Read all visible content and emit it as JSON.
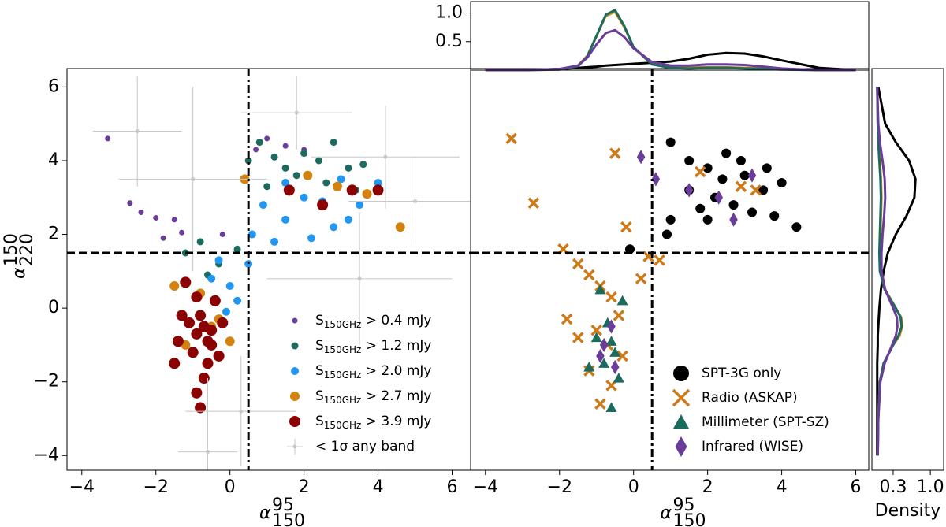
{
  "chart_data": [
    {
      "type": "scatter",
      "x_label": {
        "symbol": "α",
        "sup": "95",
        "sub": "150"
      },
      "y_label": {
        "symbol": "α",
        "sup": "150",
        "sub": "220"
      },
      "xlim": [
        -4.4,
        6.5
      ],
      "ylim": [
        -4.4,
        6.5
      ],
      "xticks": [
        {
          "value": -4,
          "label": "−4"
        },
        {
          "value": -2,
          "label": "−2"
        },
        0,
        2,
        4,
        6
      ],
      "yticks": [
        {
          "value": -4,
          "label": "−4"
        },
        {
          "value": -2,
          "label": "−2"
        },
        0,
        2,
        4,
        6
      ],
      "vlines": [
        0.5
      ],
      "hlines": [
        1.5
      ],
      "legend": "lower right",
      "series": [
        {
          "label_symbol": "S",
          "label_subscript": "150GHz",
          "name": " > 0.4 mJy",
          "color": "#6a3d9a",
          "marker": "circle",
          "size": 3.5,
          "x": [
            -3.3,
            -2.7,
            -2.4,
            -2.0,
            -1.5,
            -1.3,
            -1.8,
            -0.2,
            0.7,
            1.0,
            1.5,
            2.0
          ],
          "y": [
            4.6,
            2.85,
            2.6,
            2.45,
            2.4,
            2.05,
            1.9,
            2.0,
            4.3,
            4.6,
            4.4,
            4.3
          ]
        },
        {
          "label_symbol": "S",
          "label_subscript": "150GHz",
          "name": " > 1.2 mJy",
          "color": "#1b6b5f",
          "marker": "circle",
          "size": 4.5,
          "x": [
            0.5,
            0.8,
            1.2,
            1.5,
            2.0,
            2.4,
            2.8,
            3.2,
            3.6,
            1.0,
            -1.2,
            -0.8,
            -0.3,
            0.2,
            -0.6,
            2.6,
            3.4,
            1.8
          ],
          "y": [
            4.0,
            4.5,
            4.1,
            3.8,
            4.2,
            4.0,
            4.5,
            3.8,
            3.9,
            3.3,
            1.5,
            1.8,
            1.2,
            1.6,
            0.9,
            3.4,
            3.2,
            3.6
          ]
        },
        {
          "label_symbol": "S",
          "label_subscript": "150GHz",
          "name": " > 2.0 mJy",
          "color": "#2196f3",
          "marker": "circle",
          "size": 5,
          "x": [
            0.9,
            1.5,
            2.0,
            2.5,
            3.0,
            3.5,
            4.0,
            1.2,
            2.2,
            3.2,
            0.5,
            0.0,
            -0.3,
            0.2,
            -0.5,
            1.5,
            2.8,
            0.6,
            -0.1
          ],
          "y": [
            2.8,
            2.4,
            3.0,
            2.9,
            3.5,
            2.8,
            3.4,
            1.8,
            1.9,
            2.4,
            1.2,
            0.6,
            1.3,
            0.2,
            0.8,
            3.4,
            2.2,
            2.0,
            -0.1
          ]
        },
        {
          "label_symbol": "S",
          "label_subscript": "150GHz",
          "name": " > 2.7 mJy",
          "color": "#d4820f",
          "marker": "circle",
          "size": 6,
          "x": [
            -1.5,
            -0.8,
            -1.2,
            -0.5,
            0.4,
            2.1,
            2.9,
            4.6,
            3.7,
            -0.3,
            0.0
          ],
          "y": [
            0.6,
            0.4,
            -1.0,
            -0.5,
            3.5,
            3.6,
            3.3,
            2.2,
            3.1,
            -0.3,
            -0.9
          ]
        },
        {
          "label_symbol": "S",
          "label_subscript": "150GHz",
          "name": " > 3.9 mJy",
          "color": "#8b0000",
          "marker": "circle",
          "size": 7,
          "x": [
            -1.1,
            -0.9,
            -0.7,
            -0.6,
            -0.5,
            -1.0,
            -0.8,
            -0.6,
            -0.9,
            -1.2,
            -0.4,
            -1.4,
            -1.5,
            -0.7,
            -0.9,
            -0.8,
            -0.3,
            -0.5,
            -1.3,
            -0.2,
            1.6,
            2.5,
            3.3,
            4.0
          ],
          "y": [
            -0.4,
            -0.7,
            -0.5,
            -0.9,
            -0.6,
            -1.2,
            -0.2,
            -1.5,
            0.3,
            0.7,
            0.2,
            -0.9,
            -1.5,
            -1.9,
            -2.3,
            -2.7,
            -1.3,
            -1.0,
            -0.2,
            -0.4,
            3.2,
            2.8,
            3.2,
            3.2
          ]
        },
        {
          "name": "< 1σ any band",
          "color": "#c8c8c8",
          "marker": "errorbar",
          "size": 2.5,
          "x": [
            -1.0,
            0.3,
            3.5,
            -2.5,
            5.0,
            -0.6,
            1.8,
            4.2
          ],
          "y": [
            3.5,
            -2.8,
            0.8,
            4.8,
            2.9,
            -3.9,
            5.3,
            4.1
          ],
          "xerr": [
            2.0,
            1.5,
            2.5,
            1.2,
            1.8,
            0.8,
            1.5,
            2.0
          ],
          "yerr": [
            2.5,
            1.5,
            1.8,
            1.5,
            1.2,
            2.0,
            1.0,
            1.4
          ]
        }
      ]
    },
    {
      "type": "scatter",
      "x_label": {
        "symbol": "α",
        "sup": "95",
        "sub": "150"
      },
      "xlim": [
        -4.4,
        6.35
      ],
      "ylim": [
        -4.4,
        6.5
      ],
      "xticks": [
        {
          "value": -4,
          "label": "−4"
        },
        {
          "value": -2,
          "label": "−2"
        },
        0,
        2,
        4,
        6
      ],
      "vlines": [
        0.5
      ],
      "hlines": [
        1.5
      ],
      "legend": "lower right",
      "series": [
        {
          "name": "SPT-3G only",
          "color": "#000000",
          "marker": "circle",
          "size": 6,
          "x": [
            1.0,
            1.5,
            2.0,
            2.5,
            3.0,
            3.5,
            4.0,
            2.2,
            2.7,
            3.2,
            1.8,
            1.0,
            1.5,
            2.4,
            3.6,
            4.4,
            3.8,
            0.9,
            2.9,
            2.0,
            -0.1
          ],
          "y": [
            4.5,
            4.0,
            3.8,
            4.2,
            3.6,
            3.2,
            3.4,
            3.0,
            2.8,
            2.6,
            2.7,
            2.4,
            3.2,
            3.5,
            3.8,
            2.2,
            2.5,
            2.0,
            4.0,
            2.4,
            1.6
          ]
        },
        {
          "name": "Radio (ASKAP)",
          "color": "#cc7a1a",
          "marker": "x",
          "size": 6,
          "x": [
            -3.3,
            -2.7,
            -1.9,
            -1.5,
            -1.2,
            -0.9,
            -0.6,
            -0.4,
            -1.0,
            -0.7,
            -1.5,
            -0.3,
            -1.2,
            -0.6,
            -0.9,
            0.2,
            0.4,
            0.7,
            -0.2,
            -1.8,
            1.8,
            2.9,
            3.3,
            -0.5
          ],
          "y": [
            4.6,
            2.85,
            1.6,
            1.2,
            0.9,
            0.6,
            0.3,
            -0.2,
            -0.6,
            -1.0,
            -0.8,
            -1.3,
            -1.7,
            -2.1,
            -2.6,
            0.8,
            1.4,
            1.3,
            2.2,
            -0.3,
            3.7,
            3.3,
            3.2,
            4.2
          ]
        },
        {
          "name": "Millimeter (SPT-SZ)",
          "color": "#1b6b5f",
          "marker": "triangle",
          "size": 7,
          "x": [
            -0.7,
            -1.0,
            -0.5,
            -1.2,
            -0.6,
            -0.3,
            -0.9,
            -0.6,
            -0.8,
            -0.4
          ],
          "y": [
            -0.4,
            -0.8,
            -1.2,
            -1.6,
            -0.9,
            0.2,
            0.5,
            -2.7,
            -1.5,
            -1.9
          ]
        },
        {
          "name": "Infrared (WISE)",
          "color": "#6a3d9a",
          "marker": "diamond",
          "size": 7,
          "x": [
            -0.8,
            -0.6,
            -0.9,
            -0.5,
            0.2,
            1.5,
            2.3,
            3.2,
            2.7,
            0.6
          ],
          "y": [
            -1.0,
            -0.5,
            -1.3,
            -1.6,
            4.1,
            3.2,
            3.0,
            3.6,
            2.4,
            3.5
          ]
        }
      ]
    },
    {
      "type": "line",
      "xlim": [
        -4.4,
        6.35
      ],
      "ylim": [
        0,
        1.2
      ],
      "yticks": [
        {
          "value": 0.5,
          "label": "0.5"
        },
        {
          "value": 1,
          "label": "1.0"
        }
      ],
      "x": [
        -4,
        -3,
        -2,
        -1.5,
        -1.25,
        -1,
        -0.75,
        -0.5,
        -0.25,
        0,
        0.5,
        1,
        1.5,
        2,
        2.5,
        3,
        3.5,
        4,
        5,
        6
      ],
      "series": [
        {
          "color": "#000000",
          "values": [
            0,
            0,
            0.02,
            0.04,
            0.05,
            0.06,
            0.08,
            0.09,
            0.1,
            0.11,
            0.13,
            0.15,
            0.2,
            0.27,
            0.3,
            0.29,
            0.24,
            0.17,
            0.04,
            0
          ]
        },
        {
          "color": "#d4820f",
          "values": [
            0,
            0,
            0.01,
            0.08,
            0.25,
            0.6,
            0.95,
            1.02,
            0.75,
            0.4,
            0.1,
            0.05,
            0.05,
            0.05,
            0.05,
            0.04,
            0.03,
            0.02,
            0,
            0
          ]
        },
        {
          "color": "#1b6b5f",
          "values": [
            0,
            0,
            0.01,
            0.07,
            0.24,
            0.6,
            0.97,
            1.05,
            0.77,
            0.4,
            0.1,
            0.04,
            0.03,
            0.04,
            0.04,
            0.03,
            0.02,
            0.01,
            0,
            0
          ]
        },
        {
          "color": "#6a3d9a",
          "values": [
            0,
            0,
            0.02,
            0.08,
            0.22,
            0.45,
            0.65,
            0.7,
            0.58,
            0.38,
            0.14,
            0.08,
            0.08,
            0.1,
            0.1,
            0.09,
            0.06,
            0.03,
            0,
            0
          ]
        }
      ]
    },
    {
      "type": "hline",
      "x_label": "Density",
      "xlim": [
        -0.1,
        1.25
      ],
      "ylim": [
        -4.4,
        6.5
      ],
      "xticks": [
        {
          "value": 0.3,
          "label": "0.3"
        },
        {
          "value": 1,
          "label": "1.0"
        }
      ],
      "y": [
        -4,
        -3,
        -2,
        -1.5,
        -1,
        -0.75,
        -0.5,
        -0.25,
        0,
        0.5,
        1,
        1.5,
        2,
        2.5,
        3,
        3.5,
        4,
        4.5,
        5,
        6
      ],
      "series": [
        {
          "color": "#000000",
          "values": [
            0,
            0,
            0,
            0,
            0.01,
            0.01,
            0.02,
            0.03,
            0.04,
            0.07,
            0.12,
            0.2,
            0.35,
            0.55,
            0.7,
            0.72,
            0.6,
            0.35,
            0.15,
            0.02
          ]
        },
        {
          "color": "#d4820f",
          "values": [
            0.01,
            0.02,
            0.05,
            0.12,
            0.3,
            0.42,
            0.47,
            0.45,
            0.35,
            0.15,
            0.06,
            0.05,
            0.06,
            0.07,
            0.08,
            0.07,
            0.05,
            0.03,
            0.01,
            0
          ]
        },
        {
          "color": "#1b6b5f",
          "values": [
            0.01,
            0.02,
            0.05,
            0.12,
            0.3,
            0.4,
            0.46,
            0.44,
            0.35,
            0.14,
            0.05,
            0.04,
            0.05,
            0.06,
            0.07,
            0.06,
            0.04,
            0.02,
            0.01,
            0
          ]
        },
        {
          "color": "#6a3d9a",
          "values": [
            0.01,
            0.02,
            0.06,
            0.14,
            0.28,
            0.35,
            0.38,
            0.37,
            0.3,
            0.15,
            0.08,
            0.08,
            0.1,
            0.13,
            0.15,
            0.14,
            0.1,
            0.05,
            0.02,
            0
          ]
        }
      ]
    }
  ]
}
